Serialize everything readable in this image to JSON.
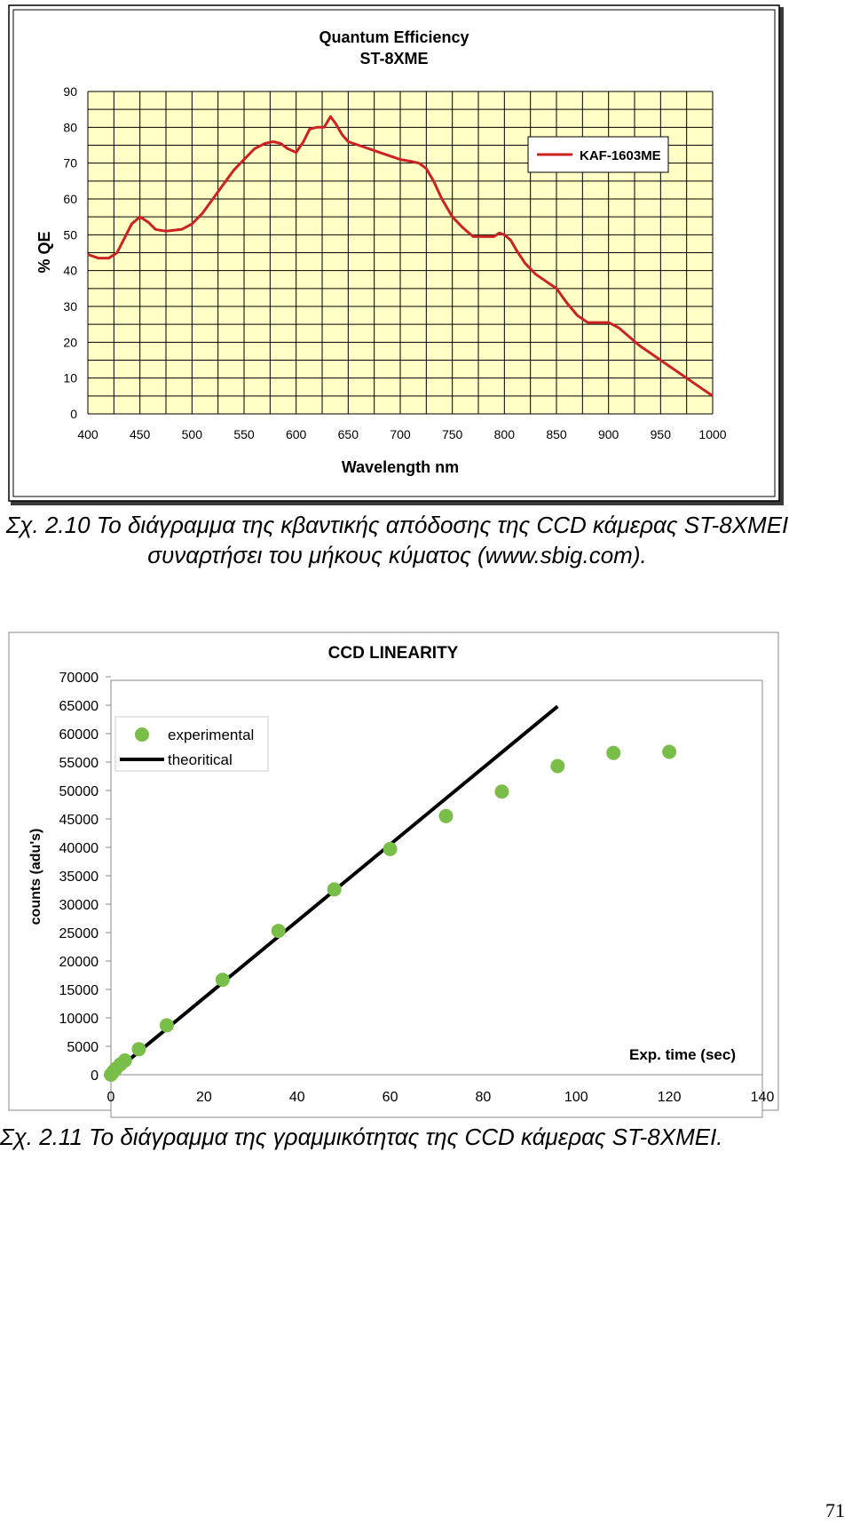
{
  "page_number": "71",
  "captions": {
    "qe": "Σχ. 2.10 Το διάγραμμα της κβαντικής απόδοσης της CCD κάμερας ST-8XMEI συναρτήσει του μήκους κύματος (www.sbig.com).",
    "linearity": "Σχ. 2.11 Το διάγραμμα της γραμμικότητας της CCD κάμερας ST-8XMEI."
  },
  "colors": {
    "qe_plot_bg": "#ffffc6",
    "qe_line": "#cc2222",
    "grid": "#000000",
    "lin_points": "#79be48",
    "lin_line": "#000000"
  },
  "chart_data": [
    {
      "type": "line",
      "title": "Quantum Efficiency",
      "subtitle": "ST-8XME",
      "xlabel": "Wavelength nm",
      "ylabel": "% QE",
      "xlim": [
        400,
        1000
      ],
      "ylim": [
        0,
        90
      ],
      "xticks": [
        400,
        450,
        500,
        550,
        600,
        650,
        700,
        750,
        800,
        850,
        900,
        950,
        1000
      ],
      "yticks": [
        0,
        10,
        20,
        30,
        40,
        50,
        60,
        70,
        80,
        90
      ],
      "grid": true,
      "legend": "top-right",
      "series": [
        {
          "name": "KAF-1603ME",
          "x": [
            400,
            410,
            420,
            428,
            435,
            442,
            450,
            458,
            465,
            475,
            490,
            500,
            510,
            520,
            530,
            540,
            550,
            560,
            570,
            578,
            585,
            592,
            600,
            607,
            613,
            620,
            627,
            633,
            638,
            644,
            650,
            660,
            670,
            680,
            690,
            700,
            710,
            718,
            725,
            732,
            740,
            750,
            760,
            770,
            780,
            790,
            795,
            800,
            806,
            812,
            820,
            830,
            840,
            850,
            860,
            870,
            880,
            890,
            900,
            910,
            920,
            930,
            940,
            950,
            960,
            970,
            980,
            990,
            1000
          ],
          "y": [
            44.5,
            43.5,
            43.5,
            45,
            49,
            53,
            55,
            53.5,
            51.5,
            51,
            51.5,
            53,
            56,
            60,
            64,
            68,
            71,
            74,
            75.5,
            76,
            75.5,
            74,
            73,
            76,
            79.5,
            80,
            80,
            83,
            81,
            78,
            76,
            75,
            74,
            73,
            72,
            71,
            70.5,
            70,
            68.5,
            65,
            60,
            55,
            52,
            49.5,
            49.5,
            49.5,
            50.5,
            50,
            48.5,
            45.5,
            42,
            39,
            37,
            35,
            31,
            27.5,
            25.5,
            25.5,
            25.5,
            24,
            21.5,
            19,
            17,
            15,
            13,
            11,
            9,
            7,
            5
          ]
        }
      ]
    },
    {
      "type": "scatter",
      "title": "CCD LINEARITY",
      "xlabel": "Exp. time (sec)",
      "ylabel": "counts (adu's)",
      "xlim": [
        0,
        140
      ],
      "ylim": [
        0,
        70000
      ],
      "xticks": [
        0,
        20,
        40,
        60,
        80,
        100,
        120,
        140
      ],
      "yticks": [
        0,
        5000,
        10000,
        15000,
        20000,
        25000,
        30000,
        35000,
        40000,
        45000,
        50000,
        55000,
        60000,
        65000,
        70000
      ],
      "grid": false,
      "legend": "top-left",
      "series": [
        {
          "name": "experimental",
          "style": "markers",
          "x": [
            0,
            0.5,
            1,
            2,
            3,
            6,
            12,
            24,
            36,
            48,
            60,
            72,
            84,
            96,
            108,
            120
          ],
          "y": [
            0,
            500,
            1000,
            1800,
            2500,
            4500,
            8700,
            16700,
            25300,
            32600,
            39700,
            45500,
            49800,
            54300,
            56600,
            56800
          ]
        },
        {
          "name": "theoritical",
          "style": "line",
          "x": [
            0,
            96
          ],
          "y": [
            0,
            64800
          ]
        }
      ]
    }
  ]
}
